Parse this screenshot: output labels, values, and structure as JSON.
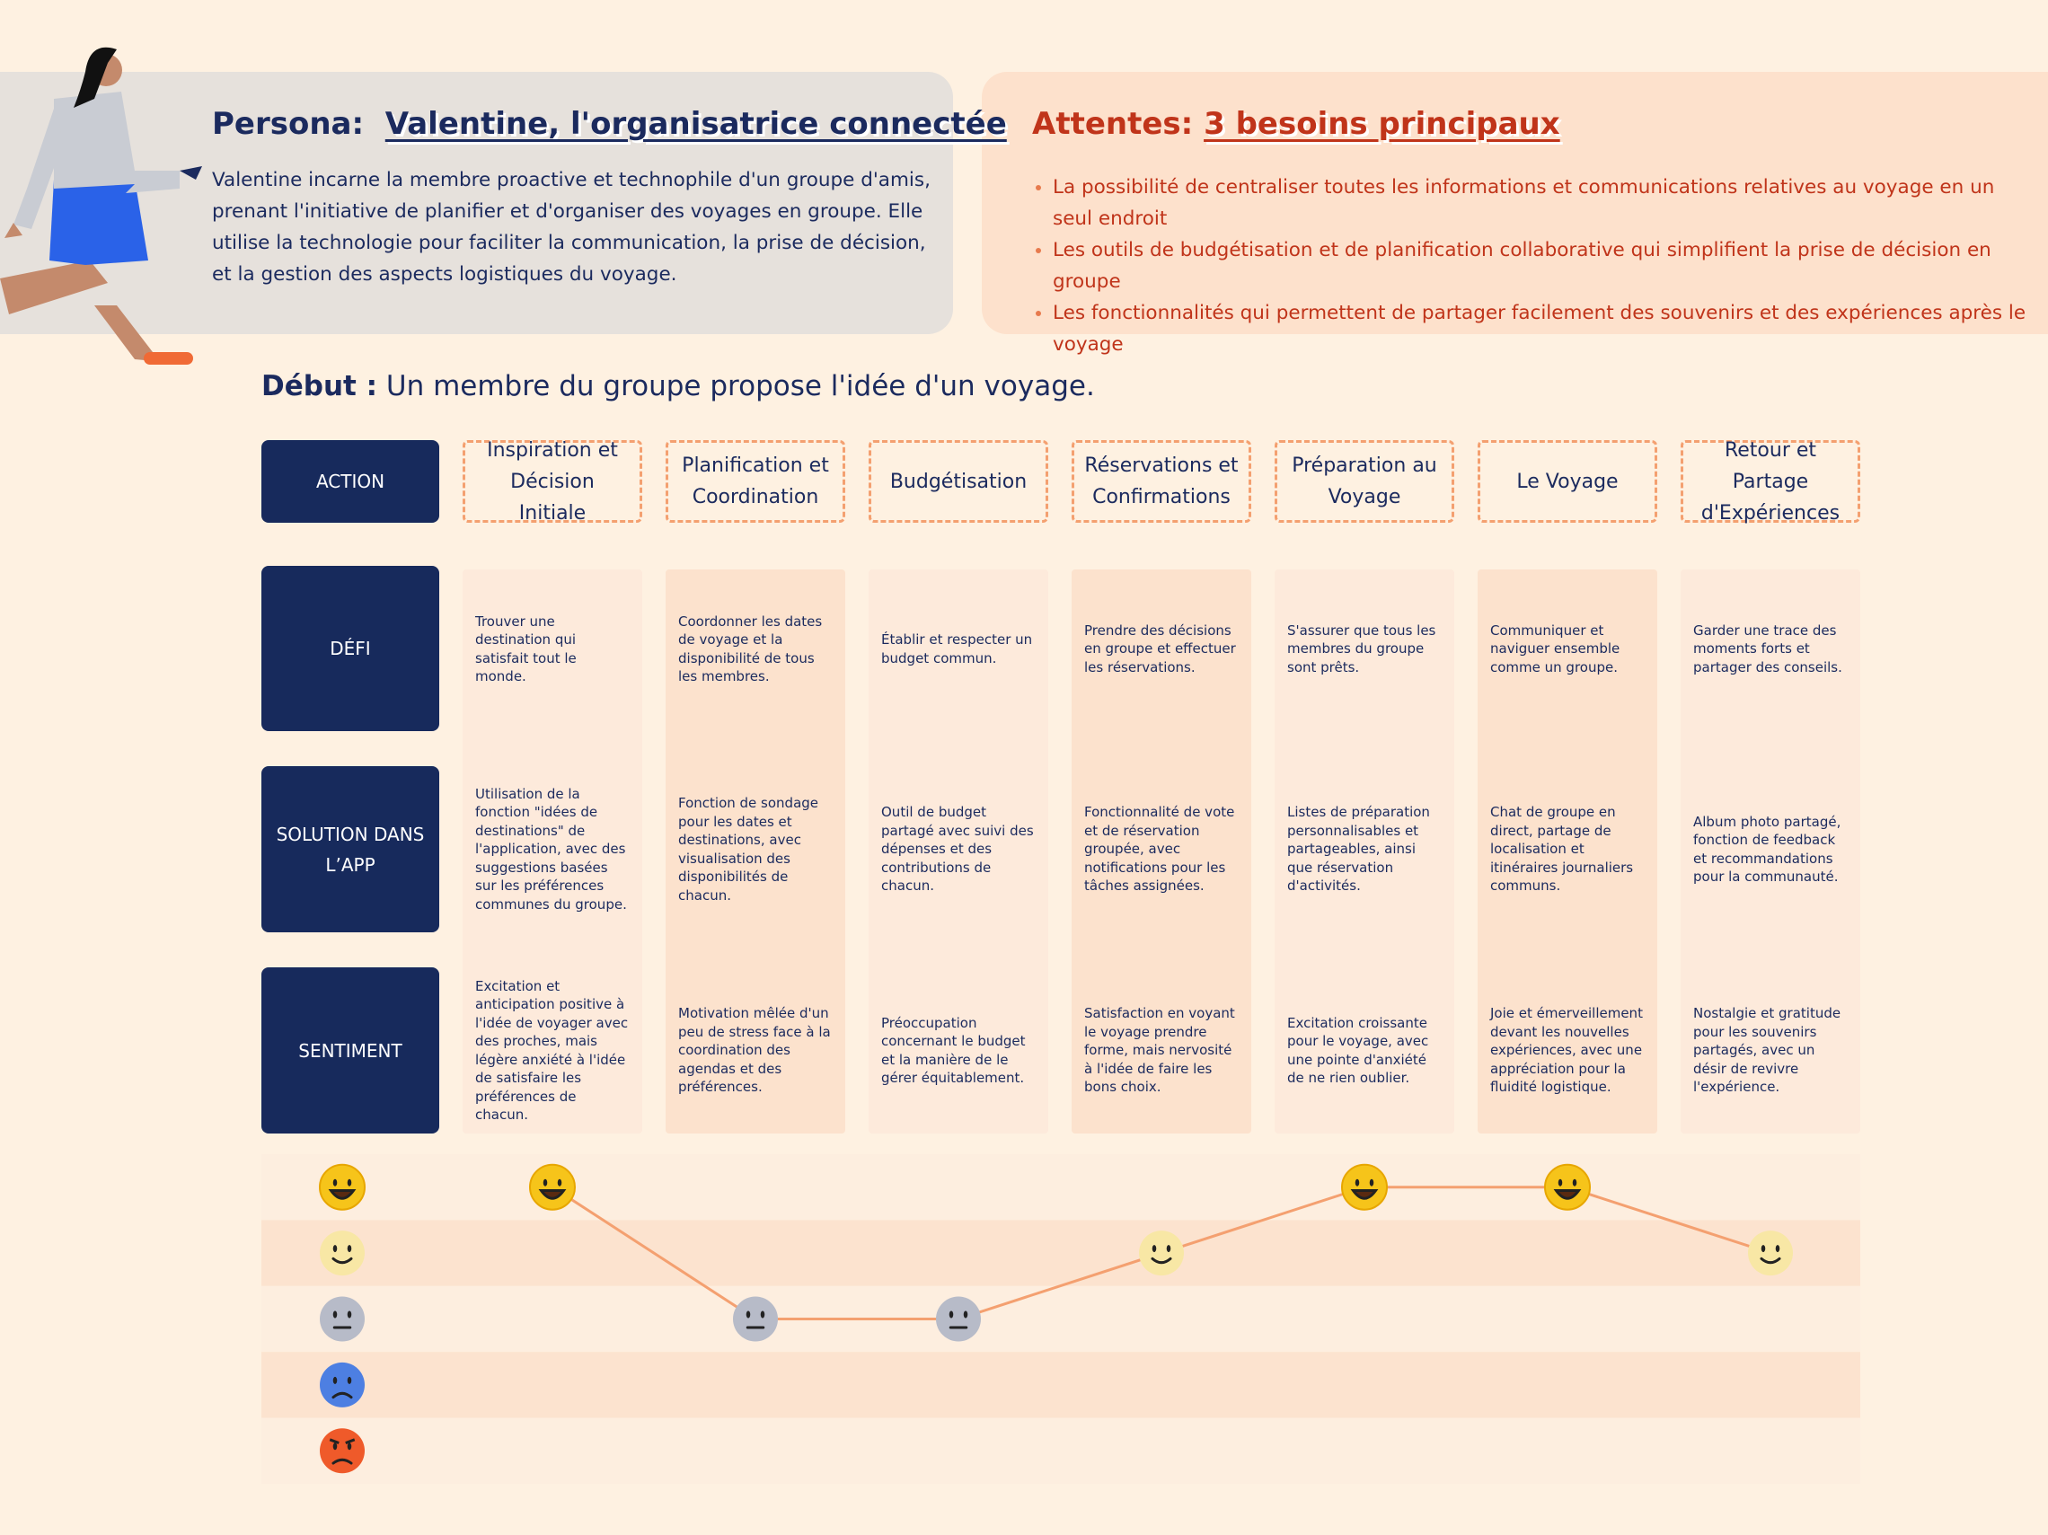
{
  "persona": {
    "label": "Persona:",
    "name": "Valentine, l'organisatrice connectée",
    "description": "Valentine incarne la membre proactive et technophile d'un groupe d'amis, prenant l'initiative de planifier et d'organiser des voyages en groupe. Elle utilise la technologie pour faciliter la communication, la prise de décision, et la gestion des aspects logistiques du voyage."
  },
  "expectations": {
    "label": "Attentes:",
    "title": "3 besoins principaux",
    "items": [
      "La possibilité de centraliser toutes les informations et communications relatives au voyage en un seul endroit",
      "Les outils de budgétisation et de planification collaborative qui simplifient la prise de décision en groupe",
      "Les fonctionnalités qui permettent de partager facilement des souvenirs et des expériences après le voyage"
    ]
  },
  "start": {
    "label": "Début :",
    "text": "Un membre du groupe propose l'idée d'un voyage."
  },
  "row_labels": [
    "ACTION",
    "DÉFI",
    "SOLUTION DANS L’APP",
    "SENTIMENT"
  ],
  "emotion_scale": [
    5,
    4,
    3,
    2,
    1
  ],
  "stages": [
    {
      "action": "Inspiration et Décision Initiale",
      "challenge": "Trouver une destination qui satisfait tout le monde.",
      "solution": "Utilisation de la fonction \"idées de destinations\" de l'application, avec des suggestions basées sur les préférences communes du groupe.",
      "feeling": "Excitation et anticipation positive à l'idée de voyager avec des proches, mais légère anxiété à l'idée de satisfaire les préférences de chacun.",
      "emotion_level": 5
    },
    {
      "action": "Planification et Coordination",
      "challenge": "Coordonner les dates de voyage et la disponibilité de tous les membres.",
      "solution": "Fonction de sondage pour les dates et destinations, avec visualisation des disponibilités de chacun.",
      "feeling": "Motivation mêlée d'un peu de stress face à la coordination des agendas et des préférences.",
      "emotion_level": 3
    },
    {
      "action": "Budgétisation",
      "challenge": "Établir et respecter un budget commun.",
      "solution": "Outil de budget partagé avec suivi des dépenses et des contributions de chacun.",
      "feeling": "Préoccupation concernant le budget et la manière de le gérer équitablement.",
      "emotion_level": 3
    },
    {
      "action": "Réservations et Confirmations",
      "challenge": "Prendre des décisions en groupe et effectuer les réservations.",
      "solution": "Fonctionnalité de vote et de réservation groupée, avec notifications pour les tâches assignées.",
      "feeling": "Satisfaction en voyant le voyage prendre forme, mais nervosité à l'idée de faire les bons choix.",
      "emotion_level": 4
    },
    {
      "action": "Préparation au Voyage",
      "challenge": "S'assurer que tous les membres du groupe sont prêts.",
      "solution": "Listes de préparation personnalisables et partageables, ainsi que réservation d'activités.",
      "feeling": "Excitation croissante pour le voyage, avec une pointe d'anxiété de ne rien oublier.",
      "emotion_level": 5
    },
    {
      "action": "Le Voyage",
      "challenge": "Communiquer et naviguer ensemble comme un groupe.",
      "solution": "Chat de groupe en direct, partage de localisation et itinéraires journaliers communs.",
      "feeling": "Joie et émerveillement devant les nouvelles expériences, avec une appréciation pour la fluidité logistique.",
      "emotion_level": 5
    },
    {
      "action": "Retour et Partage d'Expériences",
      "challenge": "Garder une trace des moments forts et partager des conseils.",
      "solution": "Album photo partagé, fonction de feedback et recommandations pour la communauté.",
      "feeling": "Nostalgie et gratitude pour les souvenirs partagés, avec un désir de revivre l'expérience.",
      "emotion_level": 4
    }
  ]
}
